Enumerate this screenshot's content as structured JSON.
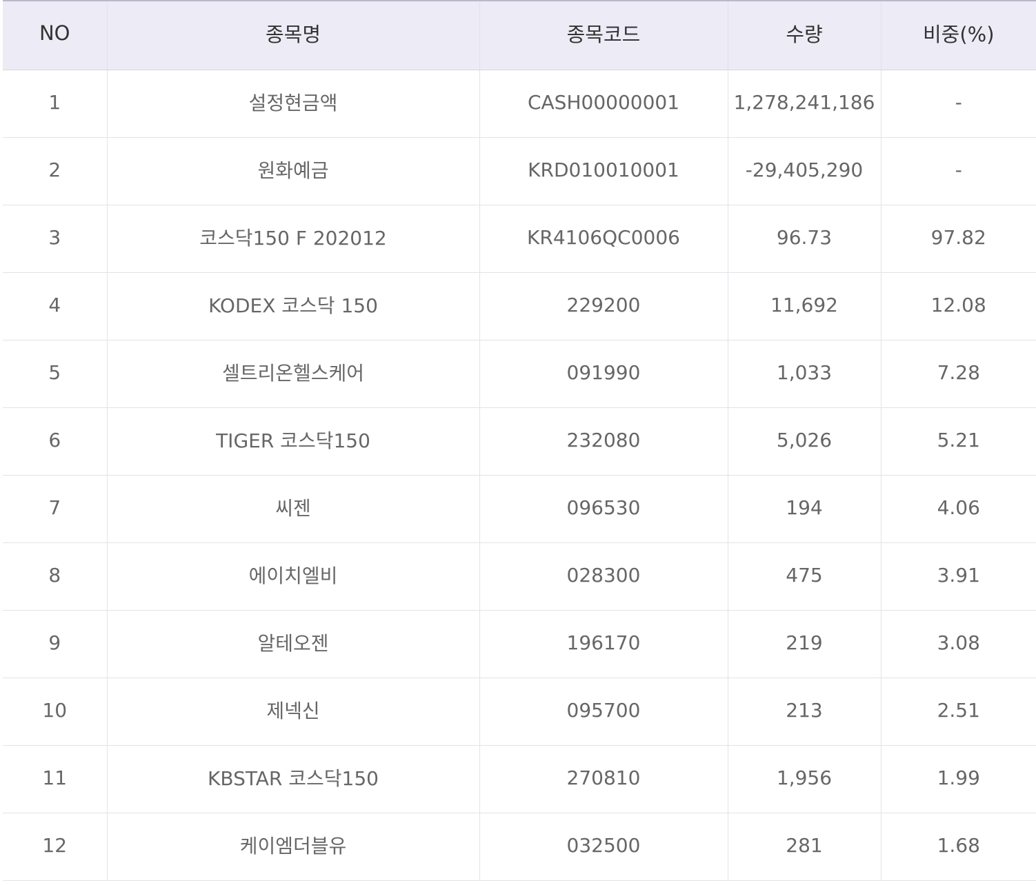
{
  "columns": {
    "no": "NO",
    "name": "종목명",
    "code": "종목코드",
    "quantity": "수량",
    "weight": "비중(%)"
  },
  "rows": [
    {
      "no": "1",
      "name": "설정현금액",
      "code": "CASH00000001",
      "quantity": "1,278,241,186",
      "weight": "-"
    },
    {
      "no": "2",
      "name": "원화예금",
      "code": "KRD010010001",
      "quantity": "-29,405,290",
      "weight": "-"
    },
    {
      "no": "3",
      "name": "코스닥150 F 202012",
      "code": "KR4106QC0006",
      "quantity": "96.73",
      "weight": "97.82"
    },
    {
      "no": "4",
      "name": "KODEX 코스닥 150",
      "code": "229200",
      "quantity": "11,692",
      "weight": "12.08"
    },
    {
      "no": "5",
      "name": "셀트리온헬스케어",
      "code": "091990",
      "quantity": "1,033",
      "weight": "7.28"
    },
    {
      "no": "6",
      "name": "TIGER 코스닥150",
      "code": "232080",
      "quantity": "5,026",
      "weight": "5.21"
    },
    {
      "no": "7",
      "name": "씨젠",
      "code": "096530",
      "quantity": "194",
      "weight": "4.06"
    },
    {
      "no": "8",
      "name": "에이치엘비",
      "code": "028300",
      "quantity": "475",
      "weight": "3.91"
    },
    {
      "no": "9",
      "name": "알테오젠",
      "code": "196170",
      "quantity": "219",
      "weight": "3.08"
    },
    {
      "no": "10",
      "name": "제넥신",
      "code": "095700",
      "quantity": "213",
      "weight": "2.51"
    },
    {
      "no": "11",
      "name": "KBSTAR 코스닥150",
      "code": "270810",
      "quantity": "1,956",
      "weight": "1.99"
    },
    {
      "no": "12",
      "name": "케이엠더블유",
      "code": "032500",
      "quantity": "281",
      "weight": "1.68"
    }
  ],
  "colors": {
    "header_background": "#ecebf6",
    "header_text": "#333333",
    "cell_text": "#666666",
    "grid_line": "#e3e3e8"
  }
}
